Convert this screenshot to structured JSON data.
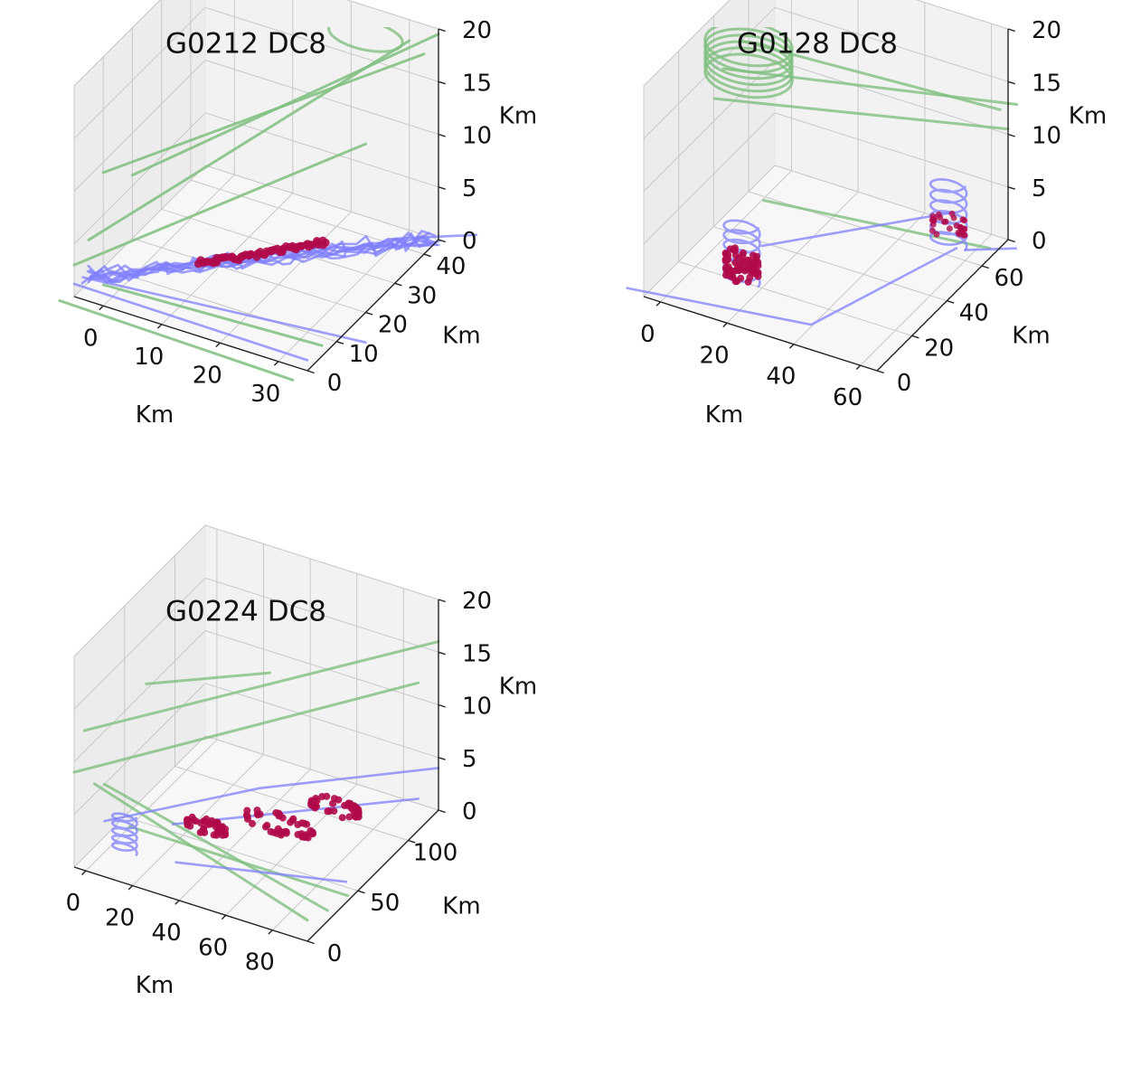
{
  "chart_data": [
    {
      "type": "scatter-3d",
      "title": "G0212 DC8",
      "xlabel": "Km",
      "ylabel": "Km",
      "zlabel": "Km",
      "xlim": [
        -5,
        35
      ],
      "ylim": [
        0,
        45
      ],
      "zlim": [
        0,
        20
      ],
      "xticks": [
        0,
        10,
        20,
        30
      ],
      "yticks": [
        0,
        10,
        20,
        30,
        40
      ],
      "zticks": [
        0,
        5,
        10,
        15,
        20
      ],
      "grid": true,
      "colors": {
        "high_track": "#7fbf7f",
        "low_track": "#7f7fff",
        "points": "#b00a4a"
      }
    },
    {
      "type": "scatter-3d",
      "title": "G0128 DC8",
      "xlabel": "Km",
      "ylabel": "Km",
      "zlabel": "Km",
      "xlim": [
        -5,
        65
      ],
      "ylim": [
        0,
        75
      ],
      "zlim": [
        0,
        20
      ],
      "xticks": [
        0,
        20,
        40,
        60
      ],
      "yticks": [
        0,
        20,
        40,
        60
      ],
      "zticks": [
        0,
        5,
        10,
        15,
        20
      ],
      "grid": true,
      "colors": {
        "high_track": "#7fbf7f",
        "low_track": "#7f7fff",
        "points": "#b00a4a"
      }
    },
    {
      "type": "scatter-3d",
      "title": "G0224 DC8",
      "xlabel": "Km",
      "ylabel": "Km",
      "zlabel": "Km",
      "xlim": [
        -5,
        95
      ],
      "ylim": [
        0,
        130
      ],
      "zlim": [
        0,
        20
      ],
      "xticks": [
        0,
        20,
        40,
        60,
        80
      ],
      "yticks": [
        0,
        50,
        100
      ],
      "zticks": [
        0,
        5,
        10,
        15,
        20
      ],
      "grid": true,
      "colors": {
        "high_track": "#7fbf7f",
        "low_track": "#7f7fff",
        "points": "#b00a4a"
      }
    }
  ]
}
